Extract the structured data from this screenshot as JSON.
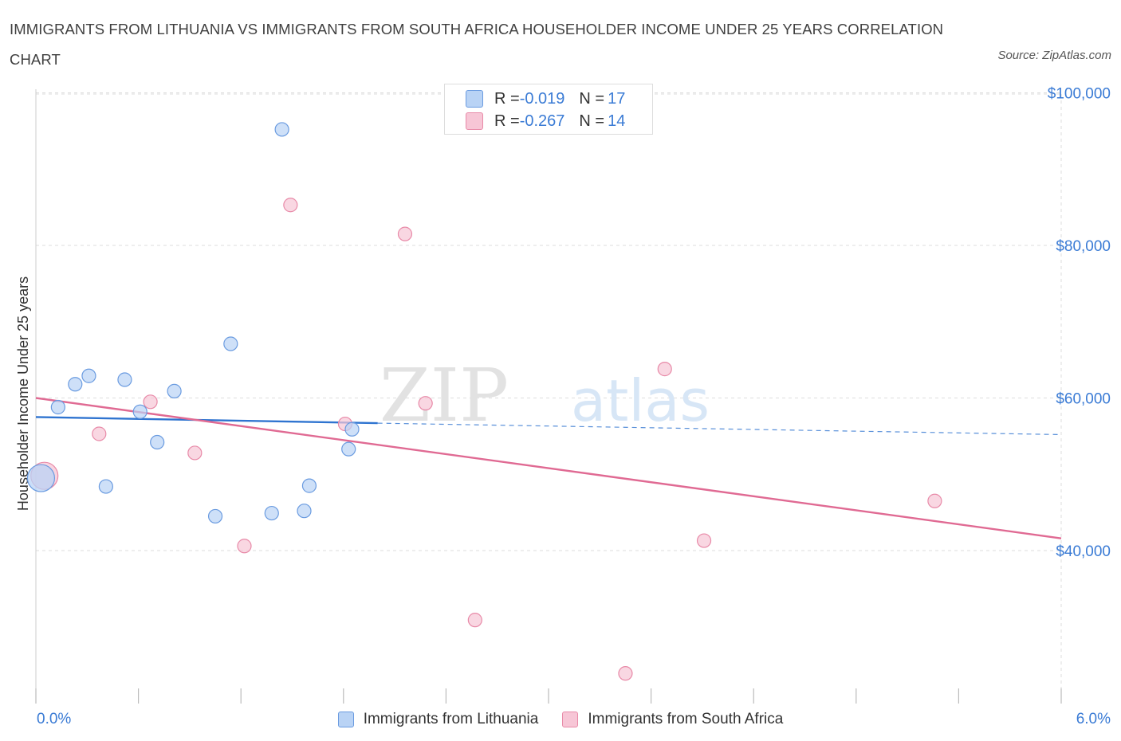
{
  "title": "IMMIGRANTS FROM LITHUANIA VS IMMIGRANTS FROM SOUTH AFRICA HOUSEHOLDER INCOME UNDER 25 YEARS CORRELATION CHART",
  "source": "Source: ZipAtlas.com",
  "watermark": {
    "zip": "ZIP",
    "atlas": "atlas"
  },
  "stats": [
    {
      "r_label": "R = ",
      "r_value": "-0.019",
      "n_label": "N = ",
      "n_value": "17"
    },
    {
      "r_label": "R = ",
      "r_value": "-0.267",
      "n_label": "N = ",
      "n_value": "14"
    }
  ],
  "legend": [
    "Immigrants from Lithuania",
    "Immigrants from South Africa"
  ],
  "colors": {
    "lithuania_fill": "#b9d3f5",
    "lithuania_stroke": "#6a9be0",
    "lithuania_line": "#2f74d0",
    "southafrica_fill": "#f7c6d6",
    "southafrica_stroke": "#e88aa8",
    "southafrica_line": "#e06a93",
    "tick_label": "#3a7bd5",
    "grid": "#dddddd"
  },
  "chart_data": {
    "type": "scatter",
    "title": "IMMIGRANTS FROM LITHUANIA VS IMMIGRANTS FROM SOUTH AFRICA HOUSEHOLDER INCOME UNDER 25 YEARS CORRELATION CHART",
    "xlabel": "",
    "ylabel": "Householder Income Under 25 years",
    "xlim": [
      0,
      6
    ],
    "ylim": [
      20000,
      101000
    ],
    "x_tick_labels": [
      {
        "x": 0,
        "label": "0.0%"
      },
      {
        "x": 6,
        "label": "6.0%"
      }
    ],
    "y_ticks": [
      {
        "y": 40000,
        "label": "$40,000"
      },
      {
        "y": 60000,
        "label": "$60,000"
      },
      {
        "y": 80000,
        "label": "$80,000"
      },
      {
        "y": 100000,
        "label": "$100,000"
      }
    ],
    "series": [
      {
        "name": "Immigrants from Lithuania",
        "r": -0.019,
        "n": 17,
        "points": [
          {
            "x": 0.03,
            "y": 49500,
            "large": true
          },
          {
            "x": 0.13,
            "y": 58800
          },
          {
            "x": 0.23,
            "y": 61800
          },
          {
            "x": 0.31,
            "y": 62900
          },
          {
            "x": 0.41,
            "y": 48400
          },
          {
            "x": 0.52,
            "y": 62400
          },
          {
            "x": 0.61,
            "y": 58200
          },
          {
            "x": 0.71,
            "y": 54200
          },
          {
            "x": 0.81,
            "y": 60900
          },
          {
            "x": 1.05,
            "y": 44500
          },
          {
            "x": 1.14,
            "y": 67100
          },
          {
            "x": 1.38,
            "y": 44900
          },
          {
            "x": 1.44,
            "y": 95200
          },
          {
            "x": 1.57,
            "y": 45200
          },
          {
            "x": 1.6,
            "y": 48500
          },
          {
            "x": 1.83,
            "y": 53300
          },
          {
            "x": 1.85,
            "y": 55900
          }
        ],
        "trend": {
          "x0": 0,
          "y0": 57500,
          "x_solid_end": 2.0,
          "y_solid_end": 56700,
          "x1": 6.0,
          "y1": 55200
        }
      },
      {
        "name": "Immigrants from South Africa",
        "r": -0.267,
        "n": 14,
        "points": [
          {
            "x": 0.05,
            "y": 49800,
            "large": true
          },
          {
            "x": 0.37,
            "y": 55300
          },
          {
            "x": 0.67,
            "y": 59500
          },
          {
            "x": 0.93,
            "y": 52800
          },
          {
            "x": 1.22,
            "y": 40600
          },
          {
            "x": 1.49,
            "y": 85300
          },
          {
            "x": 1.81,
            "y": 56600
          },
          {
            "x": 2.16,
            "y": 81500
          },
          {
            "x": 2.28,
            "y": 59300
          },
          {
            "x": 2.57,
            "y": 30900
          },
          {
            "x": 3.45,
            "y": 23900
          },
          {
            "x": 3.68,
            "y": 63800
          },
          {
            "x": 3.91,
            "y": 41300
          },
          {
            "x": 5.26,
            "y": 46500
          }
        ],
        "trend": {
          "x0": 0,
          "y0": 60000,
          "x1": 6.0,
          "y1": 41600
        }
      }
    ]
  }
}
